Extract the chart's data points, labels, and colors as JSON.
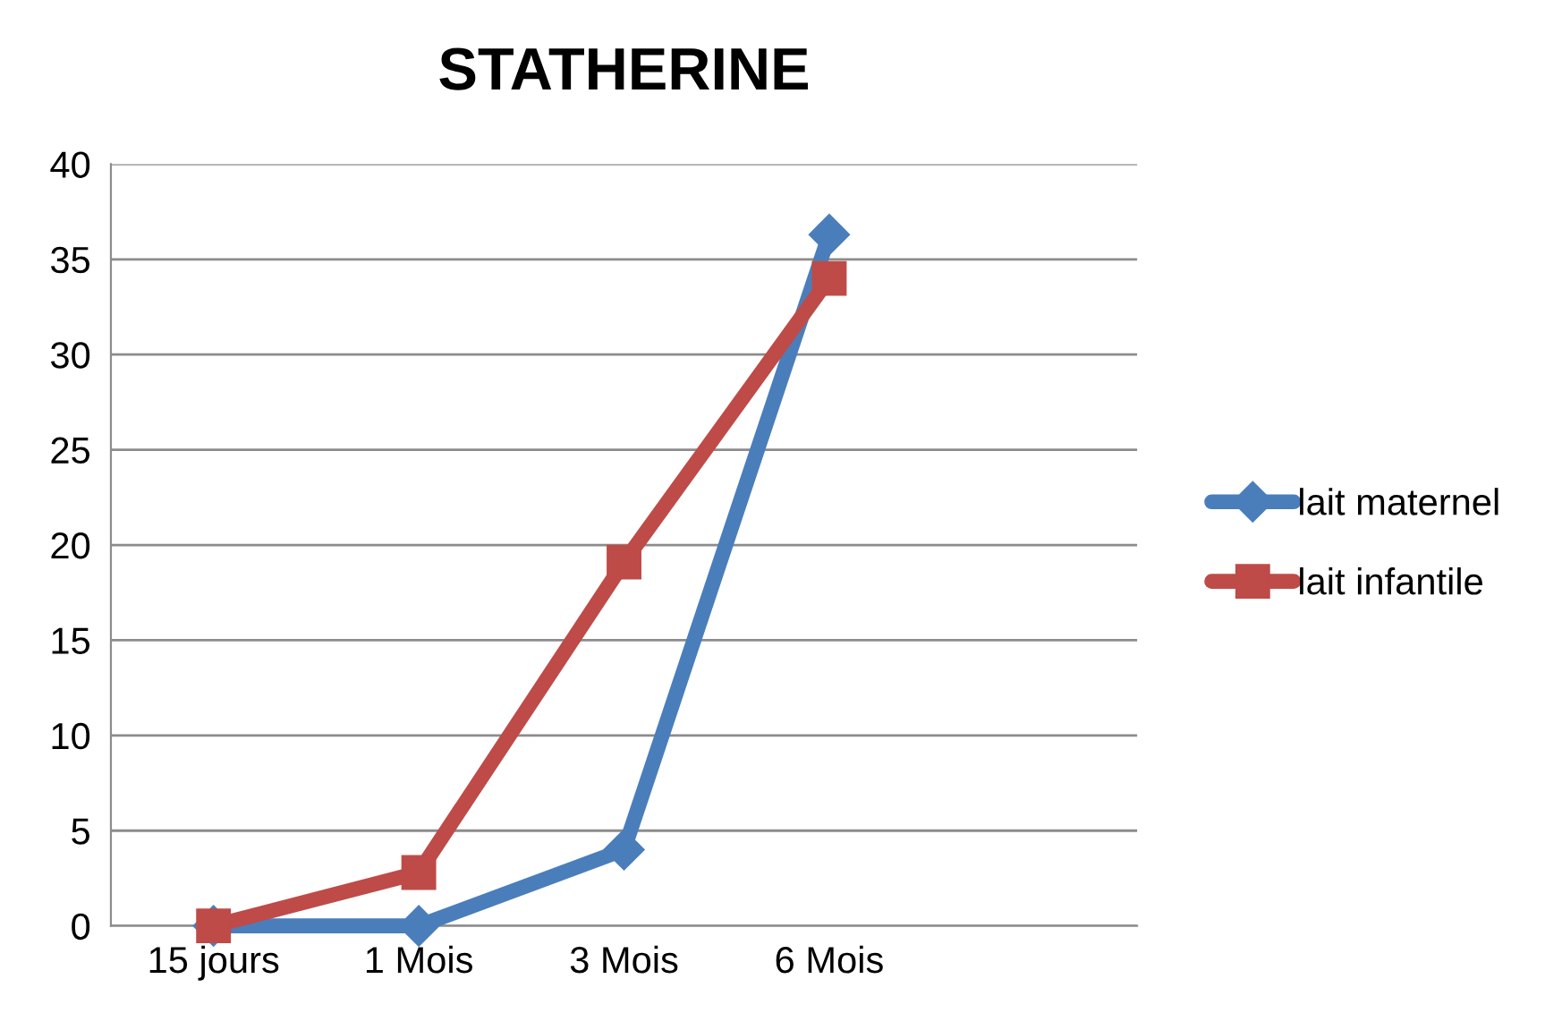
{
  "chart_data": {
    "type": "line",
    "title": "STATHERINE",
    "categories": [
      "15 jours",
      "1 Mois",
      "3 Mois",
      "6 Mois",
      null
    ],
    "series": [
      {
        "name": "lait maternel",
        "color": "#4a7ebb",
        "marker": "diamond",
        "values": [
          0,
          0,
          4,
          36.3,
          null
        ]
      },
      {
        "name": "lait infantile",
        "color": "#be4b48",
        "marker": "square",
        "values": [
          0,
          2.8,
          19.1,
          34,
          null
        ]
      }
    ],
    "ylim": [
      0,
      40
    ],
    "yticks": [
      0,
      5,
      10,
      15,
      20,
      25,
      30,
      35,
      40
    ],
    "grid": "y",
    "legend": "right",
    "line_style": "solid"
  }
}
